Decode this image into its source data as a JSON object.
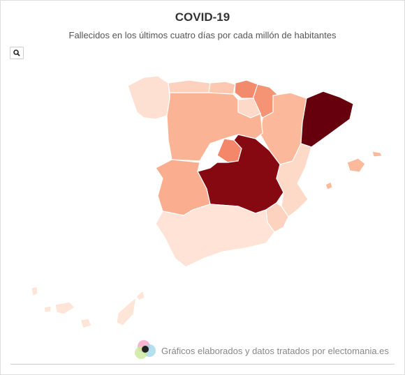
{
  "header": {
    "title": "COVID-19",
    "subtitle": "Fallecidos en los últimos cuatro días por cada millón de habitantes"
  },
  "footer": {
    "credit": "Gráficos elaborados y datos tratados por electomania.es"
  }
}
